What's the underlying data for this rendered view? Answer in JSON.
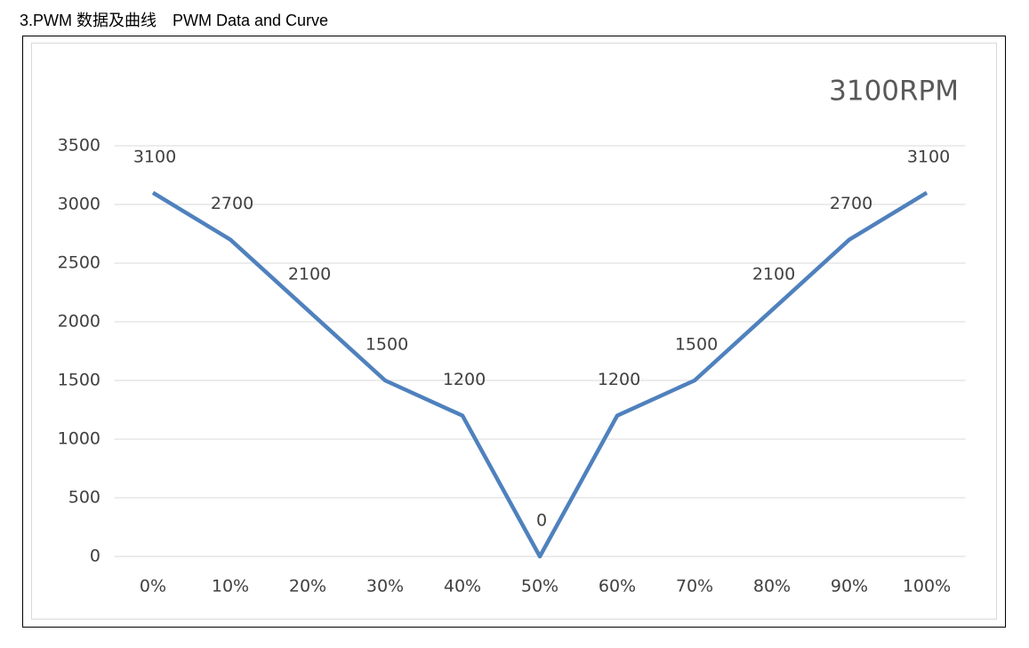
{
  "heading": "3.PWM 数据及曲线　PWM Data and Curve",
  "chart_data": {
    "type": "line",
    "title": "3100RPM",
    "categories": [
      "0%",
      "10%",
      "20%",
      "30%",
      "40%",
      "50%",
      "60%",
      "70%",
      "80%",
      "90%",
      "100%"
    ],
    "values": [
      3100,
      2700,
      2100,
      1500,
      1200,
      0,
      1200,
      1500,
      2100,
      2700,
      3100
    ],
    "color": "#4f81bd",
    "ylim": [
      0,
      3500
    ],
    "yticks": [
      0,
      500,
      1000,
      1500,
      2000,
      2500,
      3000,
      3500
    ],
    "grid": true,
    "data_labels": true
  }
}
